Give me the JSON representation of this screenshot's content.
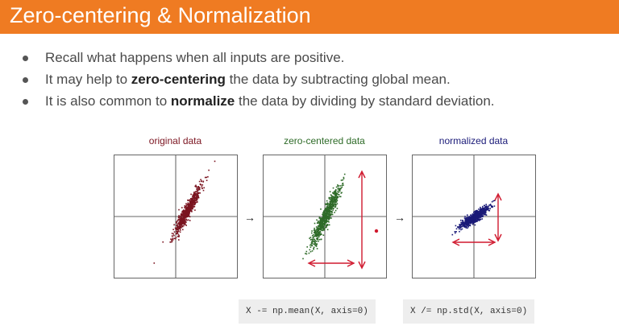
{
  "slide": {
    "title": "Zero-centering & Normalization",
    "bullets": [
      {
        "pre": "Recall what happens when all inputs are positive.",
        "bold": "",
        "post": ""
      },
      {
        "pre": "It may help to ",
        "bold": "zero-centering",
        "post": " the data by subtracting global mean."
      },
      {
        "pre": "It is also common to ",
        "bold": "normalize",
        "post": " the data by dividing by standard deviation."
      }
    ]
  },
  "figure": {
    "plots": [
      {
        "title": "original data",
        "color": "#7b1420"
      },
      {
        "title": "zero-centered data",
        "color": "#2e6b28"
      },
      {
        "title": "normalized data",
        "color": "#1a1a78"
      }
    ],
    "arrow_glyph": "→",
    "annotation_color": "#d0192e"
  },
  "code": {
    "mean": "X -= np.mean(X, axis=0)",
    "std": "X /= np.std(X, axis=0)"
  }
}
